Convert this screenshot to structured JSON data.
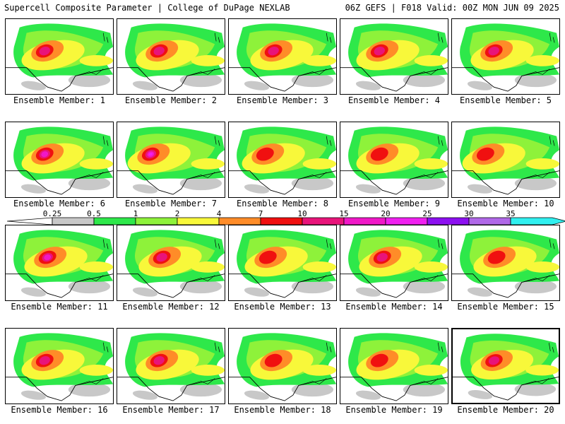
{
  "header": {
    "title": "Supercell Composite Parameter | College of DuPage NEXLAB",
    "run_info": "06Z GEFS | F018 Valid: 00Z MON JUN 09 2025"
  },
  "members": [
    {
      "label": "Ensemble Member: 1",
      "intensity": 3
    },
    {
      "label": "Ensemble Member: 2",
      "intensity": 3
    },
    {
      "label": "Ensemble Member: 3",
      "intensity": 3
    },
    {
      "label": "Ensemble Member: 4",
      "intensity": 3
    },
    {
      "label": "Ensemble Member: 5",
      "intensity": 3
    },
    {
      "label": "Ensemble Member: 6",
      "intensity": 4
    },
    {
      "label": "Ensemble Member: 7",
      "intensity": 5
    },
    {
      "label": "Ensemble Member: 8",
      "intensity": 2
    },
    {
      "label": "Ensemble Member: 9",
      "intensity": 2
    },
    {
      "label": "Ensemble Member: 10",
      "intensity": 2
    },
    {
      "label": "Ensemble Member: 11",
      "intensity": 4
    },
    {
      "label": "Ensemble Member: 12",
      "intensity": 3
    },
    {
      "label": "Ensemble Member: 13",
      "intensity": 2
    },
    {
      "label": "Ensemble Member: 14",
      "intensity": 3
    },
    {
      "label": "Ensemble Member: 15",
      "intensity": 2
    },
    {
      "label": "Ensemble Member: 16",
      "intensity": 3
    },
    {
      "label": "Ensemble Member: 17",
      "intensity": 3
    },
    {
      "label": "Ensemble Member: 18",
      "intensity": 2
    },
    {
      "label": "Ensemble Member: 19",
      "intensity": 2
    },
    {
      "label": "Ensemble Member: 20",
      "intensity": 3
    }
  ],
  "selected_member": 20,
  "legend": {
    "bins": [
      {
        "label": "0.25",
        "color": "#c8c8c8"
      },
      {
        "label": "0.5",
        "color": "#2ee84a"
      },
      {
        "label": "1",
        "color": "#8ef23a"
      },
      {
        "label": "2",
        "color": "#f8f83a"
      },
      {
        "label": "4",
        "color": "#ff8c28"
      },
      {
        "label": "7",
        "color": "#f01010"
      },
      {
        "label": "10",
        "color": "#e8147a"
      },
      {
        "label": "15",
        "color": "#f018c8"
      },
      {
        "label": "20",
        "color": "#f020f0"
      },
      {
        "label": "25",
        "color": "#8c10f0"
      },
      {
        "label": "30",
        "color": "#b068e8"
      },
      {
        "label": "35",
        "color": "#30f0f0"
      }
    ]
  }
}
